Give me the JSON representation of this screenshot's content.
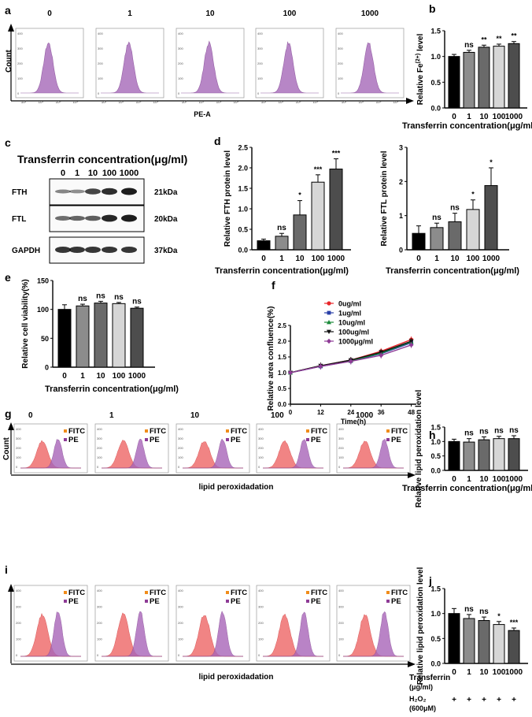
{
  "panels": {
    "a": "a",
    "b": "b",
    "c": "c",
    "d": "d",
    "e": "e",
    "f": "f",
    "g": "g",
    "h": "h",
    "i": "i",
    "j": "j"
  },
  "concentrations": [
    "0",
    "1",
    "10",
    "100",
    "1000"
  ],
  "flow_a": {
    "ylabel": "Count",
    "xlabel": "PE-A",
    "color": "#b07ac0"
  },
  "flow_g": {
    "ylabel": "Count",
    "xlabel": "lipid peroxidadation",
    "legend": [
      "FITC",
      "PE"
    ]
  },
  "flow_i": {
    "ylabel": "Count",
    "xlabel": "lipid peroxidadation",
    "legend": [
      "FITC",
      "PE"
    ]
  },
  "western": {
    "title": "Transferrin concentration(μg/ml)",
    "lanes": [
      "0",
      "1",
      "10",
      "100",
      "1000"
    ],
    "rows": [
      {
        "label": "FTH",
        "kda": "21kDa",
        "intensity": [
          0.35,
          0.3,
          0.75,
          0.9,
          1.0
        ]
      },
      {
        "label": "FTL",
        "kda": "20kDa",
        "intensity": [
          0.5,
          0.55,
          0.6,
          0.95,
          1.0
        ]
      },
      {
        "label": "GAPDH",
        "kda": "37kDa",
        "intensity": [
          0.85,
          0.85,
          0.85,
          0.85,
          0.85
        ]
      }
    ]
  },
  "chart_data": [
    {
      "id": "b",
      "type": "bar",
      "title": "",
      "categories": [
        "0",
        "1",
        "10",
        "100",
        "1000"
      ],
      "values": [
        1.0,
        1.08,
        1.18,
        1.2,
        1.25
      ],
      "errors": [
        0.04,
        0.04,
        0.04,
        0.04,
        0.04
      ],
      "sig": [
        "",
        "ns",
        "**",
        "**",
        "**"
      ],
      "ylabel": "Relative Fe(2+) level",
      "xlabel": "Transferrin concentration(μg/ml)",
      "ylim": [
        0,
        1.5
      ],
      "yticks": [
        "0.0",
        "0.5",
        "1.0",
        "1.5"
      ]
    },
    {
      "id": "d1",
      "type": "bar",
      "title": "",
      "categories": [
        "0",
        "1",
        "10",
        "100",
        "1000"
      ],
      "values": [
        0.22,
        0.33,
        0.85,
        1.65,
        1.97
      ],
      "errors": [
        0.04,
        0.07,
        0.35,
        0.18,
        0.25
      ],
      "sig": [
        "",
        "ns",
        "*",
        "***",
        "***"
      ],
      "ylabel": "Relative FTH protein level",
      "xlabel": "Transferrin concentration(μg/ml)",
      "ylim": [
        0,
        2.5
      ],
      "yticks": [
        "0.0",
        "0.5",
        "1.0",
        "1.5",
        "2.0",
        "2.5"
      ]
    },
    {
      "id": "d2",
      "type": "bar",
      "title": "",
      "categories": [
        "0",
        "1",
        "10",
        "100",
        "1000"
      ],
      "values": [
        0.48,
        0.65,
        0.82,
        1.18,
        1.88
      ],
      "errors": [
        0.22,
        0.13,
        0.25,
        0.28,
        0.52
      ],
      "sig": [
        "",
        "ns",
        "ns",
        "*",
        "*"
      ],
      "ylabel": "Relative FTL protein level",
      "xlabel": "Transferrin concentration(μg/ml)",
      "ylim": [
        0,
        3
      ],
      "yticks": [
        "0",
        "1",
        "2",
        "3"
      ]
    },
    {
      "id": "e",
      "type": "bar",
      "title": "",
      "categories": [
        "0",
        "1",
        "10",
        "100",
        "1000"
      ],
      "values": [
        100,
        106,
        111,
        110,
        102
      ],
      "errors": [
        8,
        3,
        3,
        2,
        2
      ],
      "sig": [
        "",
        "ns",
        "ns",
        "ns",
        "ns"
      ],
      "ylabel": "Relative cell viability(%)",
      "xlabel": "Transferrin concentration(μg/ml)",
      "ylim": [
        0,
        150
      ],
      "yticks": [
        "0",
        "50",
        "100",
        "150"
      ]
    },
    {
      "id": "f",
      "type": "line",
      "title": "",
      "x": [
        0,
        12,
        24,
        36,
        48
      ],
      "series": [
        {
          "name": "0ug/ml",
          "color": "#e8262a",
          "marker": "circle",
          "values": [
            1.0,
            1.22,
            1.4,
            1.68,
            2.05
          ]
        },
        {
          "name": "1ug/ml",
          "color": "#2a3fa8",
          "marker": "square",
          "values": [
            1.0,
            1.2,
            1.37,
            1.6,
            1.95
          ]
        },
        {
          "name": "10ug/ml",
          "color": "#1a8a3a",
          "marker": "triangle",
          "values": [
            1.0,
            1.22,
            1.38,
            1.62,
            1.98
          ]
        },
        {
          "name": "100ug/ml",
          "color": "#111111",
          "marker": "tri-down",
          "values": [
            1.0,
            1.22,
            1.4,
            1.65,
            2.0
          ]
        },
        {
          "name": "1000μg/ml",
          "color": "#8e3b96",
          "marker": "diamond",
          "values": [
            1.0,
            1.2,
            1.36,
            1.55,
            1.88
          ]
        }
      ],
      "ylabel": "Relative area confluence(%)",
      "xlabel": "Time(h)",
      "xlim": [
        0,
        50
      ],
      "ylim": [
        0,
        2.5
      ],
      "xticks": [
        "0",
        "12",
        "24",
        "36",
        "48"
      ],
      "yticks": [
        "0.0",
        "0.5",
        "1.0",
        "1.5",
        "2.0",
        "2.5"
      ]
    },
    {
      "id": "h",
      "type": "bar",
      "title": "",
      "categories": [
        "0",
        "1",
        "10",
        "100",
        "1000"
      ],
      "values": [
        1.0,
        0.98,
        1.06,
        1.1,
        1.1
      ],
      "errors": [
        0.08,
        0.12,
        0.1,
        0.08,
        0.1
      ],
      "sig": [
        "",
        "ns",
        "ns",
        "ns",
        "ns"
      ],
      "ylabel": "Relative lipid peroxidation level",
      "xlabel": "Transferrin concentration(μg/ml)",
      "ylim": [
        0,
        1.5
      ],
      "yticks": [
        "0.0",
        "0.5",
        "1.0",
        "1.5"
      ]
    },
    {
      "id": "j",
      "type": "bar",
      "title": "",
      "categories": [
        "0",
        "1",
        "10",
        "100",
        "1000"
      ],
      "values": [
        1.0,
        0.9,
        0.86,
        0.78,
        0.66
      ],
      "errors": [
        0.1,
        0.08,
        0.07,
        0.06,
        0.05
      ],
      "sig": [
        "",
        "ns",
        "ns",
        "*",
        "***"
      ],
      "ylabel": "Relative lipid peroxidation level",
      "xlabel": "",
      "ylim": [
        0,
        1.5
      ],
      "yticks": [
        "0.0",
        "0.5",
        "1.0",
        "1.5"
      ],
      "row_labels": {
        "transferrin": "Transferrin",
        "unit": "(μg/ml)",
        "h2o2": "H₂O₂",
        "h2o2_dose": "(600μM)",
        "plus": "+"
      }
    }
  ]
}
